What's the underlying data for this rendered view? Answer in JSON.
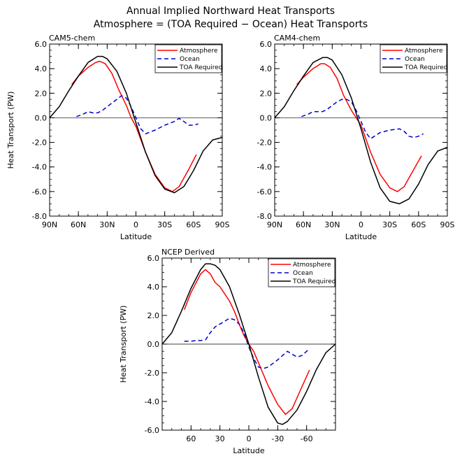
{
  "figure": {
    "title_line1": "Annual Implied Northward Heat Transports",
    "title_line2": "Atmosphere = (TOA Required − Ocean) Heat Transports"
  },
  "colors": {
    "atmosphere": "#ff0000",
    "ocean": "#0000cc",
    "toa": "#000000"
  },
  "chart_data": [
    {
      "type": "line",
      "panel_title": "CAM5-chem",
      "xlabel": "Latitude",
      "ylabel": "Heat Transport (PW)",
      "xlim": [
        90,
        -90
      ],
      "ylim": [
        -8,
        6
      ],
      "yticks": [
        6,
        4,
        2,
        0,
        -2,
        -4,
        -6,
        -8
      ],
      "yticklabels": [
        "6.0",
        "4.0",
        "2.0",
        "0.0",
        "-2.0",
        "-4.0",
        "-6.0",
        "-8.0"
      ],
      "xticks": [
        90,
        60,
        30,
        0,
        -30,
        -60,
        -90
      ],
      "xticklabels": [
        "90N",
        "60N",
        "30N",
        "0",
        "30S",
        "60S",
        "90S"
      ],
      "legend": [
        "Atmosphere",
        "Ocean",
        "TOA Required"
      ],
      "legend_position": "top-right",
      "series": [
        {
          "name": "Atmosphere",
          "style": "solid",
          "color": "#ff0000",
          "x": [
            67,
            60,
            50,
            42,
            38,
            32,
            25,
            18,
            10,
            5,
            0,
            -10,
            -20,
            -30,
            -38,
            -45,
            -55,
            -63
          ],
          "y": [
            2.7,
            3.4,
            4.1,
            4.5,
            4.6,
            4.4,
            3.6,
            2.3,
            1.0,
            0.0,
            -0.7,
            -2.8,
            -4.6,
            -5.7,
            -6.0,
            -5.6,
            -4.2,
            -3.0
          ]
        },
        {
          "name": "Ocean",
          "style": "dashed",
          "color": "#0000cc",
          "x": [
            62,
            55,
            50,
            45,
            40,
            35,
            30,
            25,
            20,
            15,
            10,
            5,
            0,
            -5,
            -10,
            -20,
            -30,
            -40,
            -45,
            -50,
            -55,
            -60,
            -65
          ],
          "y": [
            0.1,
            0.3,
            0.5,
            0.4,
            0.4,
            0.6,
            0.9,
            1.2,
            1.5,
            1.8,
            1.6,
            0.9,
            0.0,
            -0.9,
            -1.3,
            -1.0,
            -0.6,
            -0.3,
            -0.05,
            -0.3,
            -0.6,
            -0.6,
            -0.5
          ]
        },
        {
          "name": "TOA Required",
          "style": "solid",
          "color": "#000000",
          "x": [
            90,
            80,
            70,
            60,
            50,
            40,
            35,
            30,
            20,
            10,
            0,
            -10,
            -20,
            -30,
            -40,
            -50,
            -60,
            -70,
            -80,
            -90
          ],
          "y": [
            0.0,
            0.9,
            2.2,
            3.4,
            4.5,
            5.0,
            5.0,
            4.8,
            3.8,
            2.0,
            -0.4,
            -2.8,
            -4.7,
            -5.8,
            -6.1,
            -5.6,
            -4.3,
            -2.7,
            -1.8,
            -1.6
          ]
        }
      ]
    },
    {
      "type": "line",
      "panel_title": "CAM4-chem",
      "xlabel": "Latitude",
      "ylabel": "",
      "xlim": [
        90,
        -90
      ],
      "ylim": [
        -8,
        6
      ],
      "yticks": [
        6,
        4,
        2,
        0,
        -2,
        -4,
        -6,
        -8
      ],
      "yticklabels": [
        "6.0",
        "4.0",
        "2.0",
        "0.0",
        "-2.0",
        "-4.0",
        "-6.0",
        "-8.0"
      ],
      "xticks": [
        90,
        60,
        30,
        0,
        -30,
        -60,
        -90
      ],
      "xticklabels": [
        "90N",
        "60N",
        "30N",
        "0",
        "30S",
        "60S",
        "90S"
      ],
      "legend": [
        "Atmosphere",
        "Ocean",
        "TOA Required"
      ],
      "legend_position": "top-right",
      "series": [
        {
          "name": "Atmosphere",
          "style": "solid",
          "color": "#ff0000",
          "x": [
            67,
            60,
            50,
            42,
            38,
            32,
            25,
            18,
            10,
            5,
            0,
            -10,
            -20,
            -30,
            -38,
            -45,
            -55,
            -63
          ],
          "y": [
            2.7,
            3.3,
            4.0,
            4.4,
            4.4,
            4.1,
            3.2,
            1.8,
            0.6,
            0.0,
            -0.6,
            -2.8,
            -4.6,
            -5.7,
            -6.0,
            -5.6,
            -4.2,
            -3.1
          ]
        },
        {
          "name": "Ocean",
          "style": "dashed",
          "color": "#0000cc",
          "x": [
            62,
            55,
            50,
            45,
            40,
            35,
            30,
            25,
            20,
            15,
            10,
            5,
            0,
            -5,
            -10,
            -20,
            -30,
            -40,
            -45,
            -50,
            -55,
            -60,
            -65
          ],
          "y": [
            0.1,
            0.3,
            0.5,
            0.5,
            0.5,
            0.7,
            1.0,
            1.3,
            1.5,
            1.5,
            1.3,
            0.6,
            -0.3,
            -1.2,
            -1.7,
            -1.2,
            -1.0,
            -0.9,
            -1.1,
            -1.5,
            -1.6,
            -1.5,
            -1.3
          ]
        },
        {
          "name": "TOA Required",
          "style": "solid",
          "color": "#000000",
          "x": [
            90,
            80,
            70,
            60,
            50,
            40,
            35,
            30,
            20,
            10,
            0,
            -10,
            -20,
            -30,
            -40,
            -50,
            -60,
            -70,
            -80,
            -90
          ],
          "y": [
            0.0,
            0.9,
            2.2,
            3.4,
            4.5,
            4.9,
            4.9,
            4.7,
            3.5,
            1.6,
            -0.9,
            -3.6,
            -5.7,
            -6.8,
            -7.0,
            -6.6,
            -5.4,
            -3.8,
            -2.7,
            -2.4
          ]
        }
      ]
    },
    {
      "type": "line",
      "panel_title": "NCEP Derived",
      "xlabel": "Latitude",
      "ylabel": "Heat Transport (PW)",
      "xlim": [
        90,
        -90
      ],
      "ylim": [
        -6,
        6
      ],
      "yticks": [
        6,
        4,
        2,
        0,
        -2,
        -4,
        -6
      ],
      "yticklabels": [
        "6.0",
        "4.0",
        "2.0",
        "0.0",
        "-2.0",
        "-4.0",
        "-6.0"
      ],
      "xticks": [
        60,
        30,
        0,
        -30,
        -60
      ],
      "xticklabels": [
        "60",
        "30",
        "0",
        "-30",
        "-60"
      ],
      "legend": [
        "Atmosphere",
        "Ocean",
        "TOA Required"
      ],
      "legend_position": "top-right",
      "series": [
        {
          "name": "Atmosphere",
          "style": "solid",
          "color": "#ff0000",
          "x": [
            67,
            60,
            50,
            45,
            40,
            35,
            30,
            25,
            20,
            15,
            10,
            5,
            0,
            -5,
            -10,
            -20,
            -30,
            -38,
            -45,
            -55,
            -63
          ],
          "y": [
            2.4,
            3.6,
            4.9,
            5.2,
            4.9,
            4.3,
            4.0,
            3.5,
            3.0,
            2.3,
            1.4,
            0.6,
            0.0,
            -0.5,
            -1.3,
            -2.9,
            -4.2,
            -4.9,
            -4.5,
            -3.0,
            -1.8
          ]
        },
        {
          "name": "Ocean",
          "style": "dashed",
          "color": "#0000cc",
          "x": [
            67,
            60,
            55,
            50,
            45,
            40,
            35,
            30,
            25,
            20,
            15,
            10,
            5,
            0,
            -5,
            -10,
            -15,
            -20,
            -30,
            -40,
            -45,
            -50,
            -55,
            -60,
            -63
          ],
          "y": [
            0.2,
            0.2,
            0.25,
            0.25,
            0.3,
            0.8,
            1.2,
            1.4,
            1.6,
            1.8,
            1.7,
            1.4,
            0.8,
            -0.2,
            -1.0,
            -1.6,
            -1.7,
            -1.6,
            -1.1,
            -0.5,
            -0.7,
            -0.9,
            -0.8,
            -0.5,
            -0.3
          ]
        },
        {
          "name": "TOA Required",
          "style": "solid",
          "color": "#000000",
          "x": [
            90,
            80,
            70,
            60,
            50,
            45,
            40,
            35,
            30,
            20,
            10,
            0,
            -10,
            -20,
            -30,
            -35,
            -40,
            -50,
            -60,
            -70,
            -80,
            -90
          ],
          "y": [
            0.0,
            0.8,
            2.3,
            3.9,
            5.2,
            5.6,
            5.6,
            5.5,
            5.2,
            4.0,
            2.1,
            0.0,
            -2.3,
            -4.4,
            -5.5,
            -5.6,
            -5.4,
            -4.6,
            -3.3,
            -1.8,
            -0.6,
            0.0
          ]
        }
      ]
    }
  ]
}
